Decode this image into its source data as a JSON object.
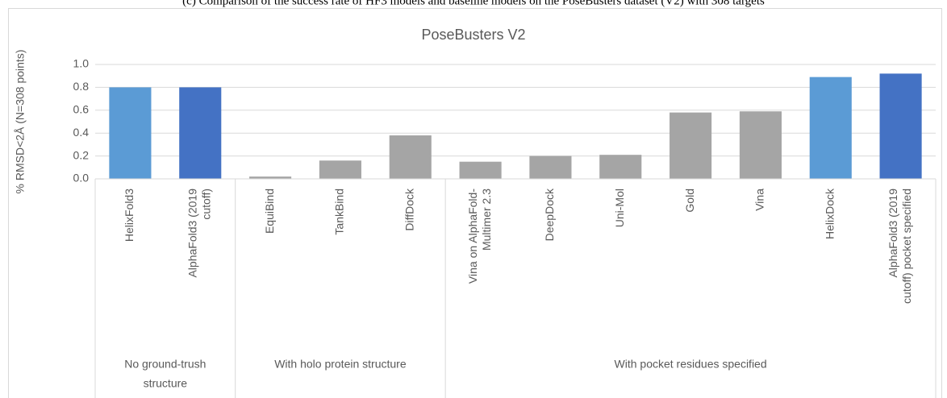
{
  "chart_data": {
    "type": "bar",
    "caption": "(c) Comparison of the success rate of HF3 models and baseline models on the PoseBusters dataset (V2) with 308 targets",
    "title": "PoseBusters V2",
    "ylabel": "% RMSD<2Å (N=308 points)",
    "categories": [
      [
        "HelixFold3"
      ],
      [
        "AlphaFold3 (2019",
        "cutoff)"
      ],
      [
        "EquiBind"
      ],
      [
        "TankBind"
      ],
      [
        "DiffDock"
      ],
      [
        "Vina on AlphaFold-",
        "Multimer 2.3"
      ],
      [
        "DeepDock"
      ],
      [
        "Uni-Mol"
      ],
      [
        "Gold"
      ],
      [
        "Vina"
      ],
      [
        "HelixDock"
      ],
      [
        "AlphaFold3 (2019",
        "cutoff) pocket specified"
      ]
    ],
    "values": [
      0.8,
      0.8,
      0.02,
      0.16,
      0.38,
      0.15,
      0.2,
      0.21,
      0.58,
      0.59,
      0.89,
      0.92
    ],
    "colors": [
      "#5b9bd5",
      "#4472c4",
      "#a5a5a5",
      "#a5a5a5",
      "#a5a5a5",
      "#a5a5a5",
      "#a5a5a5",
      "#a5a5a5",
      "#a5a5a5",
      "#a5a5a5",
      "#5b9bd5",
      "#4472c4"
    ],
    "groups": [
      {
        "label": [
          "No ground-trush",
          "structure"
        ],
        "count": 2
      },
      {
        "label": [
          "With holo protein structure"
        ],
        "count": 3
      },
      {
        "label": [
          "With pocket residues specified"
        ],
        "count": 7
      }
    ],
    "ylim": [
      0,
      1.0
    ],
    "yticks": [
      {
        "value": 0,
        "label": "0.0"
      },
      {
        "value": 0.2,
        "label": "0.2"
      },
      {
        "value": 0.4,
        "label": "0.4"
      },
      {
        "value": 0.6,
        "label": "0.6"
      },
      {
        "value": 0.8,
        "label": "0.8"
      },
      {
        "value": 1.0,
        "label": "1.0"
      }
    ],
    "grid": true
  }
}
